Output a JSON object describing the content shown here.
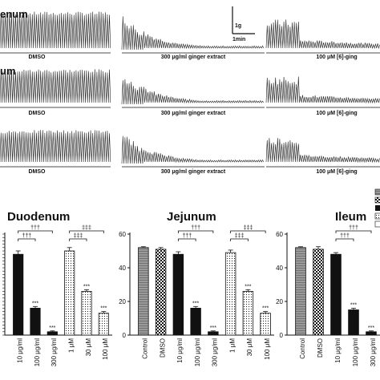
{
  "traces": {
    "rows": [
      {
        "region": "enum",
        "labels": [
          "DMSO",
          "300 μg/ml ginger extract",
          "100 μM [6]-ging"
        ]
      },
      {
        "region": "um",
        "labels": [
          "DMSO",
          "300 μg/ml ginger extract",
          "100 μM [6]-ging"
        ]
      },
      {
        "region": "",
        "labels": [
          "DMSO",
          "300 μg/ml ginger extract",
          "100 μM [6]-ging"
        ]
      }
    ],
    "scale_bar": {
      "vertical": "1g",
      "horizontal": "1min"
    }
  },
  "chart_data": [
    {
      "type": "bar",
      "title": "Duodenum",
      "ylim": [
        0,
        60
      ],
      "categories": [
        "10 μg/ml",
        "100 μg/ml",
        "300 μg/ml",
        "1 μM",
        "30 μM",
        "100 μM"
      ],
      "series": [
        {
          "values": [
            48,
            16,
            2,
            50,
            26,
            13
          ]
        }
      ],
      "errors": [
        2,
        1,
        0.5,
        2,
        1,
        1
      ],
      "patterns": [
        "black",
        "black",
        "black",
        "dots",
        "dots",
        "dots"
      ],
      "value_annotations": [
        "",
        "***",
        "***",
        "",
        "***",
        "***"
      ],
      "brackets": [
        {
          "from": 0,
          "to": 1,
          "label": "†††"
        },
        {
          "from": 0,
          "to": 2,
          "label": "†††"
        },
        {
          "from": 3,
          "to": 4,
          "label": "‡‡‡"
        },
        {
          "from": 3,
          "to": 5,
          "label": "‡‡‡"
        }
      ]
    },
    {
      "type": "bar",
      "title": "Jejunum",
      "ylim": [
        0,
        60
      ],
      "ytick_labels": [
        "0",
        "20",
        "40",
        "60"
      ],
      "categories": [
        "Control",
        "DMSO",
        "10 μg/ml",
        "100 μg/ml",
        "300 μg/ml",
        "1 μM",
        "30 μM",
        "100 μM"
      ],
      "series": [
        {
          "values": [
            52,
            51,
            48,
            16,
            2,
            49,
            26,
            13
          ]
        }
      ],
      "errors": [
        0.5,
        1,
        1.5,
        1,
        0.5,
        1.5,
        1,
        1
      ],
      "patterns": [
        "hatch",
        "checker",
        "black",
        "black",
        "black",
        "dots",
        "dots",
        "dots"
      ],
      "value_annotations": [
        "",
        "",
        "",
        "***",
        "***",
        "",
        "***",
        "***"
      ],
      "brackets": [
        {
          "from": 2,
          "to": 3,
          "label": "†††"
        },
        {
          "from": 2,
          "to": 4,
          "label": "†††"
        },
        {
          "from": 5,
          "to": 6,
          "label": "‡‡‡"
        },
        {
          "from": 5,
          "to": 7,
          "label": "‡‡‡"
        }
      ]
    },
    {
      "type": "bar",
      "title": "Ileum",
      "ylim": [
        0,
        60
      ],
      "ytick_labels": [
        "0",
        "20",
        "40",
        "60"
      ],
      "categories": [
        "Control",
        "DMSO",
        "10 μg/ml",
        "100 μg/ml",
        "300 μg/ml"
      ],
      "series": [
        {
          "values": [
            52,
            51,
            48,
            15,
            2
          ]
        }
      ],
      "errors": [
        0.5,
        1.5,
        1,
        1,
        0.5
      ],
      "patterns": [
        "hatch",
        "checker",
        "black",
        "black",
        "black"
      ],
      "value_annotations": [
        "",
        "",
        "",
        "***",
        "***"
      ],
      "brackets": [
        {
          "from": 2,
          "to": 3,
          "label": "†††"
        },
        {
          "from": 2,
          "to": 4,
          "label": "†††"
        }
      ]
    }
  ]
}
